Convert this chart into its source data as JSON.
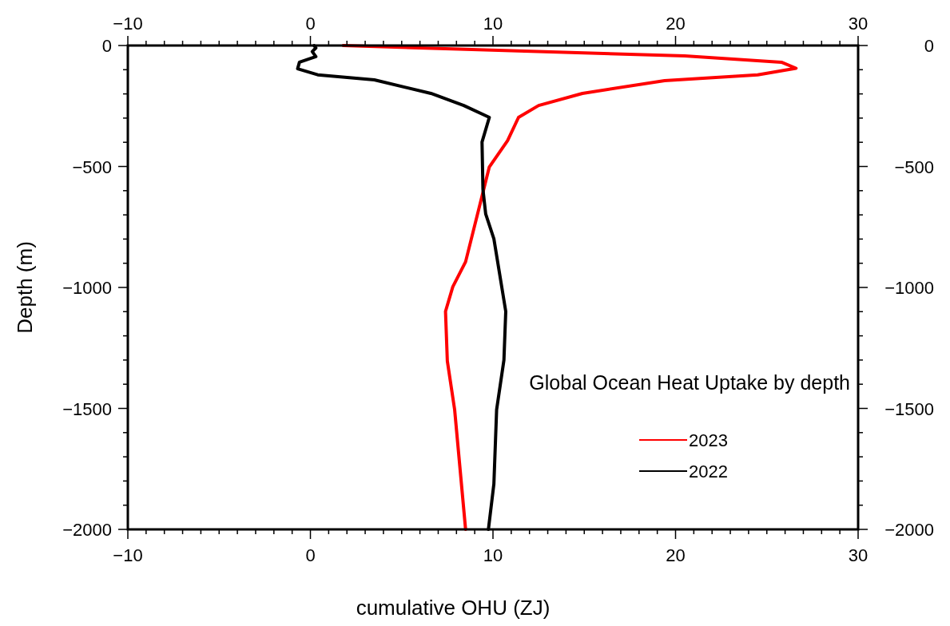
{
  "chart_data": {
    "type": "line",
    "xlabel": "cumulative OHU (ZJ)",
    "ylabel": "Depth (m)",
    "annotations": [
      "Global Ocean Heat Uptake by depth"
    ],
    "legend": "bottom right",
    "grid": false,
    "marker": "none",
    "line_style": "solid",
    "xlim": [
      -10,
      30
    ],
    "ylim": [
      -2000,
      0
    ],
    "x2lim": [
      -10,
      30
    ],
    "y2lim": [
      -2000,
      0
    ],
    "xticks": [
      {
        "value": -10,
        "label": "−10"
      },
      {
        "value": -9,
        "label": null
      },
      {
        "value": -8,
        "label": null
      },
      {
        "value": -7,
        "label": null
      },
      {
        "value": -6,
        "label": null
      },
      {
        "value": -5,
        "label": null
      },
      {
        "value": -4,
        "label": null
      },
      {
        "value": -3,
        "label": null
      },
      {
        "value": -2,
        "label": null
      },
      {
        "value": -1,
        "label": null
      },
      0,
      {
        "value": 1,
        "label": null
      },
      {
        "value": 2,
        "label": null
      },
      {
        "value": 3,
        "label": null
      },
      {
        "value": 4,
        "label": null
      },
      {
        "value": 5,
        "label": null
      },
      {
        "value": 6,
        "label": null
      },
      {
        "value": 7,
        "label": null
      },
      {
        "value": 8,
        "label": null
      },
      {
        "value": 9,
        "label": null
      },
      10,
      {
        "value": 11,
        "label": null
      },
      {
        "value": 12,
        "label": null
      },
      {
        "value": 13,
        "label": null
      },
      {
        "value": 14,
        "label": null
      },
      {
        "value": 15,
        "label": null
      },
      {
        "value": 16,
        "label": null
      },
      {
        "value": 17,
        "label": null
      },
      {
        "value": 18,
        "label": null
      },
      {
        "value": 19,
        "label": null
      },
      20,
      {
        "value": 21,
        "label": null
      },
      {
        "value": 22,
        "label": null
      },
      {
        "value": 23,
        "label": null
      },
      {
        "value": 24,
        "label": null
      },
      {
        "value": 25,
        "label": null
      },
      {
        "value": 26,
        "label": null
      },
      {
        "value": 27,
        "label": null
      },
      {
        "value": 28,
        "label": null
      },
      {
        "value": 29,
        "label": null
      },
      30
    ],
    "x2ticks": [
      {
        "value": -10,
        "label": "−10"
      },
      {
        "value": -9,
        "label": null
      },
      {
        "value": -8,
        "label": null
      },
      {
        "value": -7,
        "label": null
      },
      {
        "value": -6,
        "label": null
      },
      {
        "value": -5,
        "label": null
      },
      {
        "value": -4,
        "label": null
      },
      {
        "value": -3,
        "label": null
      },
      {
        "value": -2,
        "label": null
      },
      {
        "value": -1,
        "label": null
      },
      0,
      {
        "value": 1,
        "label": null
      },
      {
        "value": 2,
        "label": null
      },
      {
        "value": 3,
        "label": null
      },
      {
        "value": 4,
        "label": null
      },
      {
        "value": 5,
        "label": null
      },
      {
        "value": 6,
        "label": null
      },
      {
        "value": 7,
        "label": null
      },
      {
        "value": 8,
        "label": null
      },
      {
        "value": 9,
        "label": null
      },
      10,
      {
        "value": 11,
        "label": null
      },
      {
        "value": 12,
        "label": null
      },
      {
        "value": 13,
        "label": null
      },
      {
        "value": 14,
        "label": null
      },
      {
        "value": 15,
        "label": null
      },
      {
        "value": 16,
        "label": null
      },
      {
        "value": 17,
        "label": null
      },
      {
        "value": 18,
        "label": null
      },
      {
        "value": 19,
        "label": null
      },
      20,
      {
        "value": 21,
        "label": null
      },
      {
        "value": 22,
        "label": null
      },
      {
        "value": 23,
        "label": null
      },
      {
        "value": 24,
        "label": null
      },
      {
        "value": 25,
        "label": null
      },
      {
        "value": 26,
        "label": null
      },
      {
        "value": 27,
        "label": null
      },
      {
        "value": 28,
        "label": null
      },
      {
        "value": 29,
        "label": null
      },
      30
    ],
    "yticks": [
      {
        "value": -2000,
        "label": "−2000"
      },
      {
        "value": -1900,
        "label": null
      },
      {
        "value": -1800,
        "label": null
      },
      {
        "value": -1700,
        "label": null
      },
      {
        "value": -1600,
        "label": null
      },
      {
        "value": -1500,
        "label": "−1500"
      },
      {
        "value": -1400,
        "label": null
      },
      {
        "value": -1300,
        "label": null
      },
      {
        "value": -1200,
        "label": null
      },
      {
        "value": -1100,
        "label": null
      },
      {
        "value": -1000,
        "label": "−1000"
      },
      {
        "value": -900,
        "label": null
      },
      {
        "value": -800,
        "label": null
      },
      {
        "value": -700,
        "label": null
      },
      {
        "value": -600,
        "label": null
      },
      {
        "value": -500,
        "label": "−500"
      },
      {
        "value": -400,
        "label": null
      },
      {
        "value": -300,
        "label": null
      },
      {
        "value": -200,
        "label": null
      },
      {
        "value": -100,
        "label": null
      },
      0
    ],
    "y2ticks": [
      {
        "value": -2000,
        "label": "−2000"
      },
      {
        "value": -1900,
        "label": null
      },
      {
        "value": -1800,
        "label": null
      },
      {
        "value": -1700,
        "label": null
      },
      {
        "value": -1600,
        "label": null
      },
      {
        "value": -1500,
        "label": "−1500"
      },
      {
        "value": -1400,
        "label": null
      },
      {
        "value": -1300,
        "label": null
      },
      {
        "value": -1200,
        "label": null
      },
      {
        "value": -1100,
        "label": null
      },
      {
        "value": -1000,
        "label": "−1000"
      },
      {
        "value": -900,
        "label": null
      },
      {
        "value": -800,
        "label": null
      },
      {
        "value": -700,
        "label": null
      },
      {
        "value": -600,
        "label": null
      },
      {
        "value": -500,
        "label": "−500"
      },
      {
        "value": -400,
        "label": null
      },
      {
        "value": -300,
        "label": null
      },
      {
        "value": -200,
        "label": null
      },
      {
        "value": -100,
        "label": null
      },
      0
    ],
    "series": [
      {
        "name": "2023",
        "color": "#ff0000",
        "x": [
          1.8,
          20.5,
          25.8,
          26.6,
          24.5,
          19.4,
          14.9,
          12.5,
          11.4,
          10.8,
          9.8,
          8.5,
          7.8,
          7.4,
          7.5,
          7.9,
          8.5
        ],
        "values": [
          0,
          -43,
          -69,
          -94,
          -121,
          -145,
          -198,
          -248,
          -297,
          -393,
          -502,
          -894,
          -997,
          -1099,
          -1304,
          -1505,
          -2000
        ]
      },
      {
        "name": "2022",
        "color": "#000000",
        "x": [
          0.2,
          0.3,
          0.1,
          0.3,
          -0.6,
          -0.7,
          0.4,
          3.5,
          6.6,
          8.4,
          9.8,
          9.4,
          9.45,
          9.6,
          10.05,
          10.7,
          10.6,
          10.2,
          10.05,
          9.75
        ],
        "values": [
          0,
          -10,
          -25,
          -46,
          -69,
          -96,
          -121,
          -142,
          -198,
          -248,
          -297,
          -399,
          -594,
          -696,
          -799,
          -1099,
          -1300,
          -1505,
          -1812,
          -2000
        ]
      }
    ]
  }
}
